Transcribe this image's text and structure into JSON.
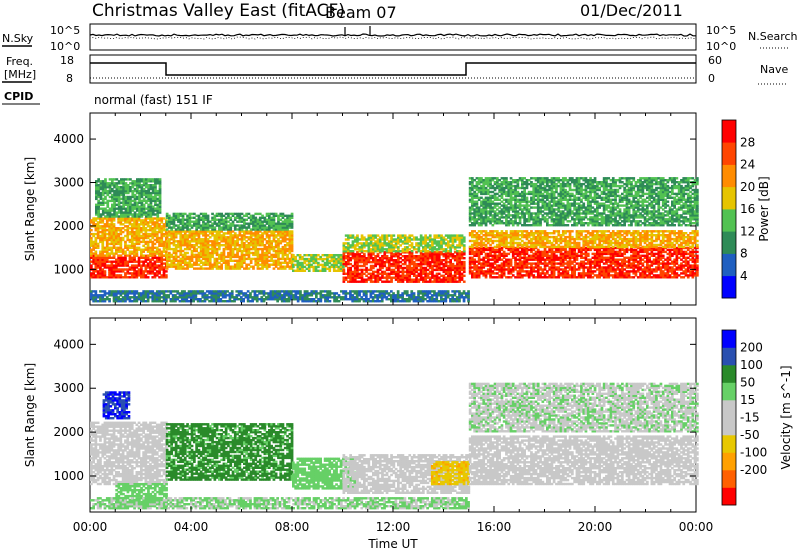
{
  "header": {
    "site": "Christmas Valley East (fitACF)",
    "beam": "Beam 07",
    "date": "01/Dec/2011"
  },
  "noise_panel": {
    "left_label": "N.Sky",
    "right_label": "N.Search",
    "left_ticks": [
      "10^5",
      "10^0"
    ],
    "right_ticks": [
      "10^5",
      "10^0"
    ]
  },
  "freq_panel": {
    "left_label_1": "Freq.",
    "left_label_2": "[MHz]",
    "right_label": "Nave",
    "left_ticks": [
      "18",
      "8"
    ],
    "right_ticks": [
      "60",
      "0"
    ]
  },
  "cpid": {
    "label": "CPID",
    "value": "normal (fast) 151 IF"
  },
  "colors": {
    "power_scale": [
      "#0000ff",
      "#1f5fc0",
      "#2e8b57",
      "#52c252",
      "#e6c400",
      "#ff8c00",
      "#ff4500",
      "#ff0000"
    ],
    "velocity_scale": [
      "#ff0000",
      "#ff6000",
      "#ffa000",
      "#e8c800",
      "#c8c8c8",
      "#c8c8c8",
      "#66d066",
      "#2a8a2a",
      "#2a50b0",
      "#0000ff"
    ]
  },
  "chart_data": [
    {
      "type": "heatmap",
      "name": "power-panel",
      "ylabel": "Slant Range [km]",
      "ylim": [
        180,
        4600
      ],
      "xlim": [
        0,
        24
      ],
      "yticks": [
        "4000",
        "3000",
        "2000",
        "1000"
      ],
      "yticks_values": [
        4000,
        3000,
        2000,
        1000
      ],
      "colorbar_label": "Power [dB]",
      "colorbar_ticks": [
        "28",
        "24",
        "20",
        "16",
        "12",
        "8",
        "4"
      ],
      "colorbar_ticks_values": [
        28,
        24,
        20,
        16,
        12,
        8,
        4
      ],
      "colorbar_range": [
        0,
        32
      ],
      "bands": [
        {
          "t0": 0.0,
          "t1": 3.0,
          "r0": 800,
          "r1": 1300,
          "level": 28
        },
        {
          "t0": 0.0,
          "t1": 3.0,
          "r0": 1300,
          "r1": 2200,
          "level": 20
        },
        {
          "t0": 0.2,
          "t1": 2.8,
          "r0": 2200,
          "r1": 3100,
          "level": 12
        },
        {
          "t0": 3.0,
          "t1": 8.0,
          "r0": 1000,
          "r1": 1900,
          "level": 20
        },
        {
          "t0": 3.0,
          "t1": 8.0,
          "r0": 1900,
          "r1": 2300,
          "level": 12
        },
        {
          "t0": 8.0,
          "t1": 10.0,
          "r0": 950,
          "r1": 1350,
          "level": 16
        },
        {
          "t0": 10.0,
          "t1": 14.8,
          "r0": 700,
          "r1": 1400,
          "level": 28
        },
        {
          "t0": 10.0,
          "t1": 14.8,
          "r0": 1400,
          "r1": 1800,
          "level": 16
        },
        {
          "t0": 15.0,
          "t1": 24.0,
          "r0": 800,
          "r1": 1500,
          "level": 28
        },
        {
          "t0": 15.0,
          "t1": 24.0,
          "r0": 1500,
          "r1": 1900,
          "level": 20
        },
        {
          "t0": 15.0,
          "t1": 24.0,
          "r0": 2000,
          "r1": 3100,
          "level": 12
        },
        {
          "t0": 0.0,
          "t1": 15.0,
          "r0": 250,
          "r1": 500,
          "level": 8
        }
      ]
    },
    {
      "type": "heatmap",
      "name": "velocity-panel",
      "ylabel": "Slant Range [km]",
      "ylim": [
        180,
        4600
      ],
      "xlim": [
        0,
        24
      ],
      "yticks": [
        "4000",
        "3000",
        "2000",
        "1000"
      ],
      "yticks_values": [
        4000,
        3000,
        2000,
        1000
      ],
      "xlabel": "Time UT",
      "xticks": [
        "00:00",
        "04:00",
        "08:00",
        "12:00",
        "16:00",
        "20:00",
        "00:00"
      ],
      "xticks_values": [
        0,
        4,
        8,
        12,
        16,
        20,
        24
      ],
      "colorbar_label": "Velocity [m s^-1]",
      "colorbar_ticks": [
        "200",
        "100",
        "50",
        "15",
        "-15",
        "-50",
        "-100",
        "-200"
      ],
      "colorbar_ticks_values": [
        200,
        100,
        50,
        15,
        -15,
        -50,
        -100,
        -200
      ],
      "bands": [
        {
          "t0": 0.0,
          "t1": 3.0,
          "r0": 800,
          "r1": 2200,
          "vel": 0
        },
        {
          "t0": 0.5,
          "t1": 1.5,
          "r0": 2300,
          "r1": 2900,
          "vel": 200
        },
        {
          "t0": 1.0,
          "t1": 3.0,
          "r0": 300,
          "r1": 800,
          "vel": 30
        },
        {
          "t0": 3.0,
          "t1": 8.0,
          "r0": 900,
          "r1": 2200,
          "vel": 60
        },
        {
          "t0": 8.0,
          "t1": 10.5,
          "r0": 700,
          "r1": 1400,
          "vel": 30
        },
        {
          "t0": 10.0,
          "t1": 15.0,
          "r0": 600,
          "r1": 1500,
          "vel": 0
        },
        {
          "t0": 13.5,
          "t1": 15.0,
          "r0": 800,
          "r1": 1300,
          "vel": -40
        },
        {
          "t0": 15.0,
          "t1": 24.0,
          "r0": 800,
          "r1": 1900,
          "vel": 0
        },
        {
          "t0": 15.0,
          "t1": 24.0,
          "r0": 2000,
          "r1": 3100,
          "vel": 10
        },
        {
          "t0": 0.0,
          "t1": 15.0,
          "r0": 250,
          "r1": 500,
          "vel": 20
        }
      ]
    }
  ]
}
